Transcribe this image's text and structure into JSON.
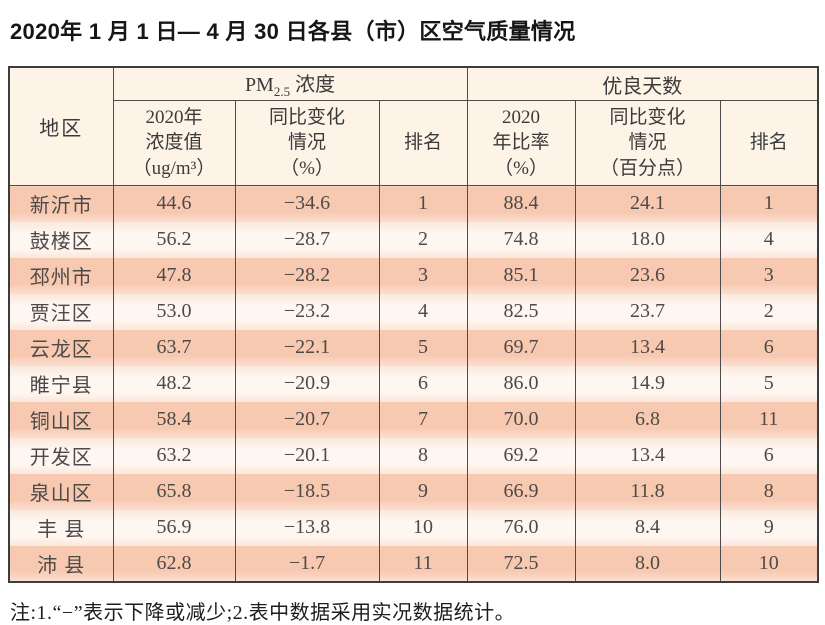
{
  "title": "2020年 1 月 1 日— 4 月 30 日各县（市）区空气质量情况",
  "table": {
    "region_header": "地区",
    "pm_group": {
      "prefix": "PM",
      "sub": "2.5",
      "suffix": " 浓度"
    },
    "good_group": "优良天数",
    "sub_headers": [
      "2020年\n浓度值\n（ug/m³）",
      "同比变化\n情况\n（%）",
      "排名",
      "2020\n年比率\n（%）",
      "同比变化\n情况\n（百分点）",
      "排名"
    ],
    "rows": [
      {
        "region": "新沂市",
        "pm_value": "44.6",
        "pm_change": "−34.6",
        "pm_rank": "1",
        "good_ratio": "88.4",
        "good_change": "24.1",
        "good_rank": "1"
      },
      {
        "region": "鼓楼区",
        "pm_value": "56.2",
        "pm_change": "−28.7",
        "pm_rank": "2",
        "good_ratio": "74.8",
        "good_change": "18.0",
        "good_rank": "4"
      },
      {
        "region": "邳州市",
        "pm_value": "47.8",
        "pm_change": "−28.2",
        "pm_rank": "3",
        "good_ratio": "85.1",
        "good_change": "23.6",
        "good_rank": "3"
      },
      {
        "region": "贾汪区",
        "pm_value": "53.0",
        "pm_change": "−23.2",
        "pm_rank": "4",
        "good_ratio": "82.5",
        "good_change": "23.7",
        "good_rank": "2"
      },
      {
        "region": "云龙区",
        "pm_value": "63.7",
        "pm_change": "−22.1",
        "pm_rank": "5",
        "good_ratio": "69.7",
        "good_change": "13.4",
        "good_rank": "6"
      },
      {
        "region": "睢宁县",
        "pm_value": "48.2",
        "pm_change": "−20.9",
        "pm_rank": "6",
        "good_ratio": "86.0",
        "good_change": "14.9",
        "good_rank": "5"
      },
      {
        "region": "铜山区",
        "pm_value": "58.4",
        "pm_change": "−20.7",
        "pm_rank": "7",
        "good_ratio": "70.0",
        "good_change": "6.8",
        "good_rank": "11"
      },
      {
        "region": "开发区",
        "pm_value": "63.2",
        "pm_change": "−20.1",
        "pm_rank": "8",
        "good_ratio": "69.2",
        "good_change": "13.4",
        "good_rank": "6"
      },
      {
        "region": "泉山区",
        "pm_value": "65.8",
        "pm_change": "−18.5",
        "pm_rank": "9",
        "good_ratio": "66.9",
        "good_change": "11.8",
        "good_rank": "8"
      },
      {
        "region": "丰 县",
        "pm_value": "56.9",
        "pm_change": "−13.8",
        "pm_rank": "10",
        "good_ratio": "76.0",
        "good_change": "8.4",
        "good_rank": "9"
      },
      {
        "region": "沛 县",
        "pm_value": "62.8",
        "pm_change": "−1.7",
        "pm_rank": "11",
        "good_ratio": "72.5",
        "good_change": "8.0",
        "good_rank": "10"
      }
    ]
  },
  "footnote": "注:1.“−”表示下降或减少;2.表中数据采用实况数据统计。",
  "colors": {
    "header_bg": "#fdf3e6",
    "row_odd_bg": "#f8c9b1",
    "row_even_bg": "#fef6f1",
    "border": "#3d3d3d",
    "text": "#4e4a47"
  }
}
